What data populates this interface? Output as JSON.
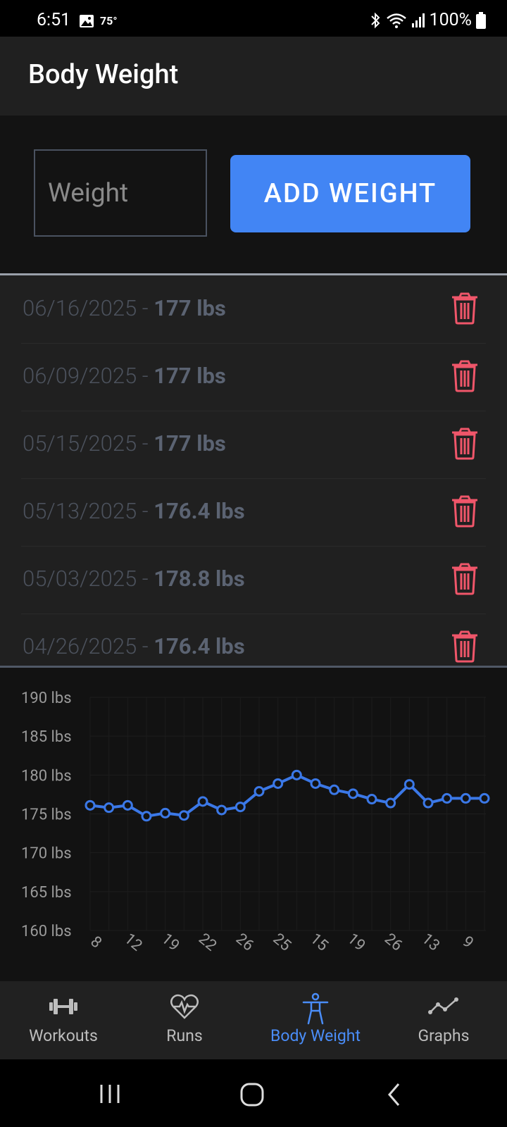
{
  "status_bar": {
    "time": "6:51",
    "temperature": "75°",
    "battery": "100%"
  },
  "app_bar": {
    "title": "Body Weight"
  },
  "entry": {
    "placeholder": "Weight",
    "value": "",
    "add_label": "ADD WEIGHT"
  },
  "entries": [
    {
      "date": "06/16/2025",
      "sep": " - ",
      "weight": "177 lbs"
    },
    {
      "date": "06/09/2025",
      "sep": " - ",
      "weight": "177 lbs"
    },
    {
      "date": "05/15/2025",
      "sep": " - ",
      "weight": "177 lbs"
    },
    {
      "date": "05/13/2025",
      "sep": " - ",
      "weight": "176.4 lbs"
    },
    {
      "date": "05/03/2025",
      "sep": " - ",
      "weight": "178.8 lbs"
    },
    {
      "date": "04/26/2025",
      "sep": " - ",
      "weight": "176.4 lbs"
    }
  ],
  "chart_data": {
    "type": "line",
    "ylim": [
      160,
      190
    ],
    "y_ticks": [
      "190 lbs",
      "185 lbs",
      "180 lbs",
      "175 lbs",
      "170 lbs",
      "165 lbs",
      "160 lbs"
    ],
    "y_tick_values": [
      190,
      185,
      180,
      175,
      170,
      165,
      160
    ],
    "x_tick_labels": [
      "8",
      "12",
      "19",
      "22",
      "26",
      "25",
      "15",
      "19",
      "26",
      "13",
      "9"
    ],
    "values": [
      176.1,
      175.8,
      176.1,
      174.7,
      175.1,
      174.8,
      176.6,
      175.5,
      175.9,
      177.9,
      178.9,
      180.0,
      178.9,
      178.1,
      177.6,
      176.9,
      176.4,
      178.8,
      176.4,
      177.0,
      177.0,
      177.0
    ],
    "line_color": "#3b78e7"
  },
  "bottom_nav": {
    "items": [
      {
        "label": "Workouts",
        "icon": "dumbbell-icon"
      },
      {
        "label": "Runs",
        "icon": "heart-pulse-icon"
      },
      {
        "label": "Body Weight",
        "icon": "person-icon"
      },
      {
        "label": "Graphs",
        "icon": "graph-icon"
      }
    ],
    "active_index": 2,
    "active_color": "#4a8df8"
  },
  "colors": {
    "accent": "#4285f4",
    "delete": "#f0566a",
    "background": "#121212"
  }
}
